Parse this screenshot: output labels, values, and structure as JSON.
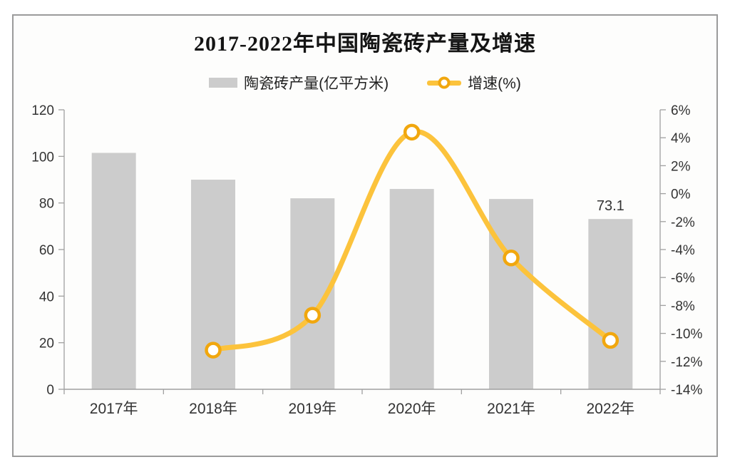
{
  "window": {
    "frame_border_color": "#9b9b9b",
    "frame_background": "#fdfdfc"
  },
  "chart_data": {
    "type": "combo",
    "title": "2017-2022年中国陶瓷砖产量及增速",
    "categories": [
      "2017年",
      "2018年",
      "2019年",
      "2020年",
      "2021年",
      "2022年"
    ],
    "series": [
      {
        "name": "陶瓷砖产量(亿平方米)",
        "type": "bar",
        "axis": "left",
        "color": "#cccccc",
        "values": [
          101.5,
          90.0,
          82.0,
          86.0,
          81.7,
          73.1
        ]
      },
      {
        "name": "增速(%)",
        "type": "line",
        "axis": "right",
        "color": "#FCC33C",
        "marker_ring_color": "#F1A70E",
        "marker_fill": "#ffffff",
        "values": [
          null,
          -11.2,
          -8.7,
          4.4,
          -4.6,
          -10.5
        ]
      }
    ],
    "data_labels": [
      {
        "series": 0,
        "index": 5,
        "text": "73.1"
      }
    ],
    "axes": {
      "left": {
        "min": 0,
        "max": 120,
        "step": 20,
        "ticks": [
          {
            "v": 0,
            "label": "0"
          },
          {
            "v": 20,
            "label": "20"
          },
          {
            "v": 40,
            "label": "40"
          },
          {
            "v": 60,
            "label": "60"
          },
          {
            "v": 80,
            "label": "80"
          },
          {
            "v": 100,
            "label": "100"
          },
          {
            "v": 120,
            "label": "120"
          }
        ]
      },
      "right": {
        "min": -14,
        "max": 6,
        "step": 2,
        "ticks": [
          {
            "v": 6,
            "label": "6%"
          },
          {
            "v": 4,
            "label": "4%"
          },
          {
            "v": 2,
            "label": "2%"
          },
          {
            "v": 0,
            "label": "0%"
          },
          {
            "v": -2,
            "label": "-2%"
          },
          {
            "v": -4,
            "label": "-4%"
          },
          {
            "v": -6,
            "label": "-6%"
          },
          {
            "v": -8,
            "label": "-8%"
          },
          {
            "v": -10,
            "label": "-10%"
          },
          {
            "v": -12,
            "label": "-12%"
          },
          {
            "v": -14,
            "label": "-14%"
          }
        ]
      }
    },
    "grid": false,
    "legend_position": "top",
    "style": {
      "axis_line_color": "#a0a0a0",
      "tick_text_color": "#333333",
      "data_label_color": "#333333"
    }
  }
}
